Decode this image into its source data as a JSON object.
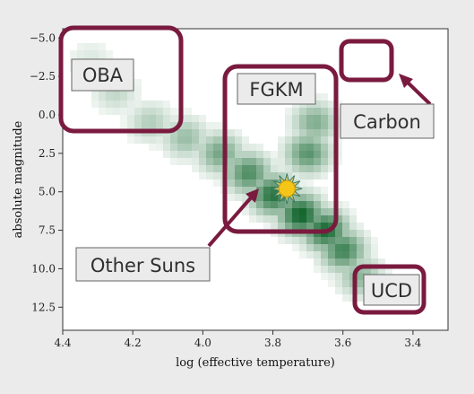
{
  "chart_data": {
    "type": "heatmap",
    "title": "",
    "xlabel": "log (effective temperature)",
    "ylabel": "absolute magnitude",
    "xlim": [
      4.4,
      3.3
    ],
    "ylim": [
      -5.6,
      14.0
    ],
    "x_inverted": true,
    "y_inverted": true,
    "x_ticks": [
      4.4,
      4.2,
      4.0,
      3.8,
      3.6,
      3.4
    ],
    "x_tick_labels": [
      "4.4",
      "4.2",
      "4.0",
      "3.8",
      "3.6",
      "3.4"
    ],
    "y_ticks": [
      -5.0,
      -2.5,
      0.0,
      2.5,
      5.0,
      7.5,
      10.0,
      12.5
    ],
    "y_tick_labels": [
      "−5.0",
      "−2.5",
      "0.0",
      "2.5",
      "5.0",
      "7.5",
      "10.0",
      "12.5"
    ],
    "grid": false,
    "colormap": [
      "#ffffff",
      "#005a1e"
    ],
    "density_description": [
      {
        "logT": 4.32,
        "mag": -3.5,
        "density": 0.15
      },
      {
        "logT": 4.25,
        "mag": -1.5,
        "density": 0.25
      },
      {
        "logT": 4.15,
        "mag": 0.5,
        "density": 0.3
      },
      {
        "logT": 4.05,
        "mag": 1.5,
        "density": 0.4
      },
      {
        "logT": 3.95,
        "mag": 2.5,
        "density": 0.55
      },
      {
        "logT": 3.87,
        "mag": 3.8,
        "density": 0.7
      },
      {
        "logT": 3.8,
        "mag": 5.2,
        "density": 0.85
      },
      {
        "logT": 3.72,
        "mag": 6.5,
        "density": 0.95
      },
      {
        "logT": 3.65,
        "mag": 7.5,
        "density": 0.9
      },
      {
        "logT": 3.6,
        "mag": 8.8,
        "density": 0.75
      },
      {
        "logT": 3.55,
        "mag": 10.5,
        "density": 0.45
      },
      {
        "logT": 3.68,
        "mag": 0.5,
        "density": 0.5
      },
      {
        "logT": 3.7,
        "mag": 2.5,
        "density": 0.65
      }
    ],
    "regions": [
      {
        "name": "OBA",
        "label": "OBA"
      },
      {
        "name": "FGKM",
        "label": "FGKM"
      },
      {
        "name": "Carbon",
        "label": "Carbon"
      },
      {
        "name": "UCD",
        "label": "UCD"
      },
      {
        "name": "Other Suns",
        "label": "Other Suns"
      }
    ],
    "sun_marker": {
      "logT": 3.76,
      "mag": 4.8
    }
  },
  "colors": {
    "highlight_box": "#7a1a3f",
    "label_bg": "#ebebeb",
    "label_border": "#666666",
    "sun_fill": "#f5c518",
    "sun_rays": "#3a7a6a",
    "page_bg": "#ebebeb",
    "plot_bg": "#ffffff"
  }
}
